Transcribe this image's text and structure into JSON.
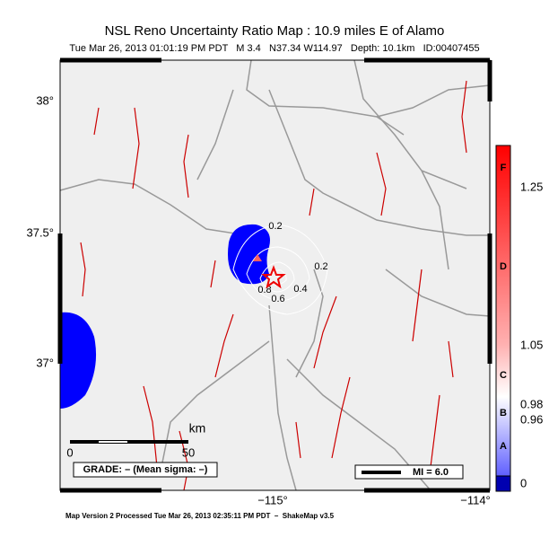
{
  "header": {
    "title": "NSL Reno Uncertainty Ratio Map : 10.9 miles E of Alamo",
    "subtitle": "Tue Mar 26, 2013 01:01:19 PM PDT   M 3.4   N37.34 W114.97   Depth: 10.1km   ID:00407455"
  },
  "axes": {
    "lat_labels": [
      "38°",
      "37.5°",
      "37°"
    ],
    "lon_labels": [
      "−115°",
      "−114°"
    ]
  },
  "contour_labels": [
    "0.2",
    "0.2",
    "0.4",
    "0.6",
    "0.8"
  ],
  "scale_bar": {
    "unit": "km",
    "start": "0",
    "end": "50"
  },
  "grade": "GRADE: – (Mean sigma: –)",
  "mi_legend": "MI = 6.0",
  "colorbar": {
    "letters": [
      "F",
      "D",
      "C",
      "B",
      "A"
    ],
    "values": [
      "1.25",
      "1.05",
      "0.98",
      "0.96",
      "0"
    ]
  },
  "footer": "Map Version 2 Processed Tue Mar 26, 2013 02:35:11 PM PDT  –  ShakeMap v3.5"
}
